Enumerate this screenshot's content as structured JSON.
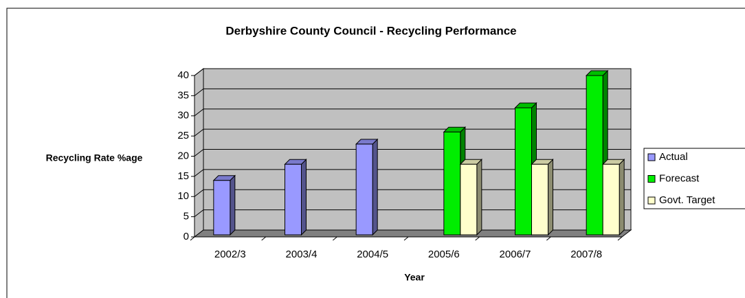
{
  "chart_data": {
    "type": "bar3d",
    "title": "Derbyshire County Council -  Recycling Performance",
    "x_label": "Year",
    "y_label": "Recycling Rate %age",
    "categories": [
      "2002/3",
      "2003/4",
      "2004/5",
      "2005/6",
      "2006/7",
      "2007/8"
    ],
    "series": [
      {
        "name": "Actual",
        "color": "#9999ff",
        "values": [
          14,
          18,
          23,
          null,
          null,
          null
        ]
      },
      {
        "name": "Forecast",
        "color": "#00ee00",
        "values": [
          null,
          null,
          null,
          26,
          32,
          40
        ]
      },
      {
        "name": "Govt. Target",
        "color": "#ffffcc",
        "values": [
          null,
          null,
          null,
          18,
          18,
          18
        ]
      }
    ],
    "ylim": [
      0,
      40
    ],
    "yticks": [
      0,
      5,
      10,
      15,
      20,
      25,
      30,
      35,
      40
    ],
    "grid": true,
    "legend": "right"
  }
}
